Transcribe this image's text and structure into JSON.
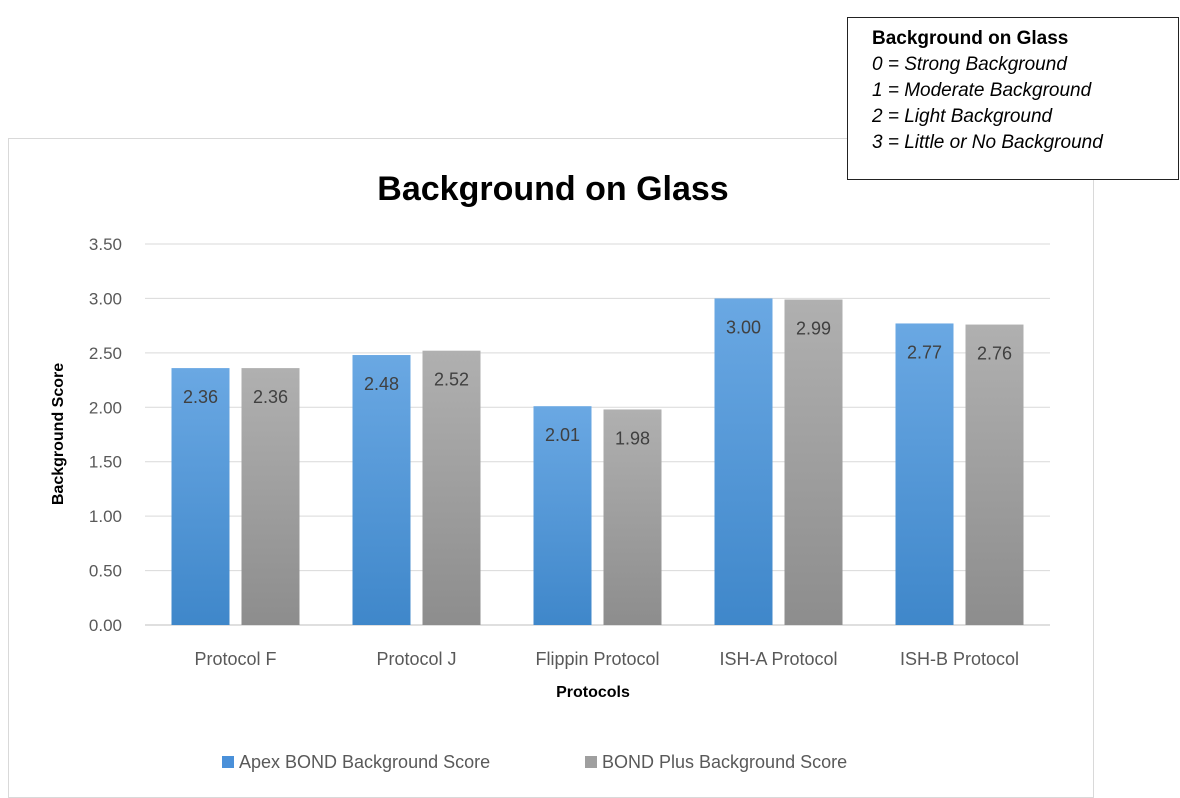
{
  "chart_data": {
    "type": "bar",
    "title": "Background on Glass",
    "xlabel": "Protocols",
    "ylabel": "Background Score",
    "categories": [
      "Protocol F",
      "Protocol J",
      "Flippin Protocol",
      "ISH-A Protocol",
      "ISH-B Protocol"
    ],
    "series": [
      {
        "name": "Apex BOND Background Score",
        "values": [
          2.36,
          2.48,
          2.01,
          3.0,
          2.77
        ],
        "color": "#4a90d9"
      },
      {
        "name": "BOND Plus Background Score",
        "values": [
          2.36,
          2.52,
          1.98,
          2.99,
          2.76
        ],
        "color": "#9f9f9f"
      }
    ],
    "ylim": [
      0,
      3.5
    ],
    "yticks": [
      "0.00",
      "0.50",
      "1.00",
      "1.50",
      "2.00",
      "2.50",
      "3.00",
      "3.50"
    ],
    "data_labels": [
      [
        "2.36",
        "2.48",
        "2.01",
        "3.00",
        "2.77"
      ],
      [
        "2.36",
        "2.52",
        "1.98",
        "2.99",
        "2.76"
      ]
    ],
    "grid": true,
    "legend_position": "bottom"
  },
  "note": {
    "title": "Background on Glass",
    "lines": [
      "0 = Strong Background",
      "1 = Moderate Background",
      "2 = Light Background",
      "3 = Little or No Background"
    ]
  }
}
